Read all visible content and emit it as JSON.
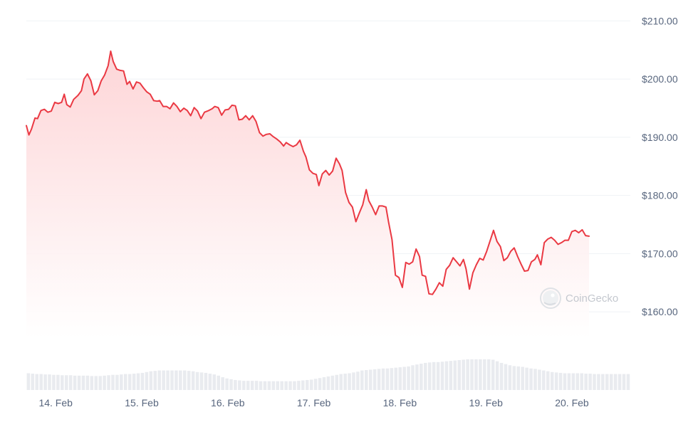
{
  "chart_data": {
    "type": "area",
    "watermark": "CoinGecko",
    "y_ticks": [
      "$210.00",
      "$200.00",
      "$190.00",
      "$180.00",
      "$170.00",
      "$160.00"
    ],
    "y_tick_values": [
      210,
      200,
      190,
      180,
      170,
      160
    ],
    "ylim": [
      155.5,
      212
    ],
    "x_ticks": [
      "14. Feb",
      "15. Feb",
      "16. Feb",
      "17. Feb",
      "18. Feb",
      "19. Feb",
      "20. Feb"
    ],
    "x_tick_values": [
      0,
      1,
      2,
      3,
      4,
      5,
      6
    ],
    "xlim": [
      -0.07,
      6.95
    ],
    "grid": true,
    "colors": {
      "line": "#ea3943",
      "fill_top": "#fdd3d5",
      "fill_bottom": "#ffffff",
      "volume": "#e9ebef",
      "grid": "#eff2f5",
      "axis_text": "#58667e"
    },
    "series": [
      {
        "values": [
          [
            -0.07,
            192.0
          ],
          [
            -0.04,
            190.4
          ],
          [
            -0.01,
            191.4
          ],
          [
            0.03,
            193.3
          ],
          [
            0.06,
            193.2
          ],
          [
            0.1,
            194.6
          ],
          [
            0.14,
            194.8
          ],
          [
            0.18,
            194.3
          ],
          [
            0.22,
            194.5
          ],
          [
            0.26,
            196.0
          ],
          [
            0.3,
            195.8
          ],
          [
            0.34,
            196.0
          ],
          [
            0.37,
            197.4
          ],
          [
            0.4,
            195.6
          ],
          [
            0.44,
            195.2
          ],
          [
            0.48,
            196.5
          ],
          [
            0.53,
            197.2
          ],
          [
            0.57,
            198.0
          ],
          [
            0.6,
            200.0
          ],
          [
            0.64,
            200.9
          ],
          [
            0.68,
            199.7
          ],
          [
            0.72,
            197.3
          ],
          [
            0.76,
            198.0
          ],
          [
            0.8,
            199.7
          ],
          [
            0.84,
            200.7
          ],
          [
            0.88,
            202.3
          ],
          [
            0.91,
            204.8
          ],
          [
            0.94,
            203.0
          ],
          [
            0.98,
            201.7
          ],
          [
            1.02,
            201.5
          ],
          [
            1.06,
            201.4
          ],
          [
            1.1,
            199.1
          ],
          [
            1.13,
            199.6
          ],
          [
            1.17,
            198.3
          ],
          [
            1.21,
            199.5
          ],
          [
            1.25,
            199.3
          ],
          [
            1.29,
            198.5
          ],
          [
            1.33,
            197.8
          ],
          [
            1.37,
            197.4
          ],
          [
            1.41,
            196.3
          ],
          [
            1.45,
            196.2
          ],
          [
            1.48,
            196.3
          ],
          [
            1.52,
            195.3
          ],
          [
            1.56,
            195.3
          ],
          [
            1.6,
            194.9
          ],
          [
            1.64,
            195.9
          ],
          [
            1.68,
            195.3
          ],
          [
            1.72,
            194.4
          ],
          [
            1.76,
            195.0
          ],
          [
            1.8,
            194.6
          ],
          [
            1.84,
            193.7
          ],
          [
            1.88,
            195.1
          ],
          [
            1.92,
            194.5
          ],
          [
            1.96,
            193.2
          ],
          [
            2.0,
            194.3
          ],
          [
            2.05,
            194.6
          ],
          [
            2.09,
            194.9
          ],
          [
            2.12,
            195.3
          ],
          [
            2.16,
            195.1
          ],
          [
            2.2,
            193.8
          ],
          [
            2.24,
            194.7
          ],
          [
            2.28,
            194.8
          ],
          [
            2.32,
            195.5
          ],
          [
            2.36,
            195.4
          ],
          [
            2.4,
            193.0
          ],
          [
            2.44,
            193.1
          ],
          [
            2.48,
            193.7
          ],
          [
            2.52,
            193.0
          ],
          [
            2.56,
            193.7
          ],
          [
            2.6,
            192.7
          ],
          [
            2.64,
            190.8
          ],
          [
            2.68,
            190.2
          ],
          [
            2.72,
            190.5
          ],
          [
            2.76,
            190.6
          ],
          [
            2.8,
            190.1
          ],
          [
            2.84,
            189.7
          ],
          [
            2.88,
            189.2
          ],
          [
            2.92,
            188.5
          ],
          [
            2.95,
            189.1
          ],
          [
            2.99,
            188.7
          ],
          [
            3.03,
            188.4
          ],
          [
            3.07,
            188.7
          ],
          [
            3.11,
            189.5
          ],
          [
            3.15,
            187.6
          ],
          [
            3.18,
            186.6
          ],
          [
            3.22,
            184.4
          ],
          [
            3.26,
            183.8
          ],
          [
            3.3,
            183.6
          ],
          [
            3.33,
            181.7
          ],
          [
            3.37,
            183.7
          ],
          [
            3.41,
            184.3
          ],
          [
            3.45,
            183.5
          ],
          [
            3.49,
            184.2
          ],
          [
            3.53,
            186.4
          ],
          [
            3.57,
            185.4
          ],
          [
            3.6,
            184.3
          ],
          [
            3.64,
            180.5
          ],
          [
            3.68,
            178.8
          ],
          [
            3.72,
            178.0
          ],
          [
            3.76,
            175.5
          ],
          [
            3.8,
            177.0
          ],
          [
            3.84,
            178.4
          ],
          [
            3.88,
            181.0
          ],
          [
            3.91,
            179.1
          ],
          [
            3.95,
            178.0
          ],
          [
            3.99,
            176.7
          ],
          [
            4.03,
            178.2
          ],
          [
            4.07,
            178.2
          ],
          [
            4.11,
            178.0
          ],
          [
            4.14,
            175.4
          ],
          [
            4.18,
            172.4
          ],
          [
            4.22,
            166.3
          ],
          [
            4.26,
            165.9
          ],
          [
            4.3,
            164.2
          ],
          [
            4.34,
            168.5
          ],
          [
            4.38,
            168.2
          ],
          [
            4.42,
            168.6
          ],
          [
            4.46,
            170.8
          ],
          [
            4.5,
            169.5
          ],
          [
            4.53,
            166.3
          ],
          [
            4.57,
            166.1
          ],
          [
            4.61,
            163.1
          ],
          [
            4.65,
            163.0
          ],
          [
            4.69,
            163.9
          ],
          [
            4.73,
            165.0
          ],
          [
            4.77,
            164.4
          ],
          [
            4.81,
            167.3
          ],
          [
            4.85,
            168.0
          ],
          [
            4.89,
            169.3
          ],
          [
            4.93,
            168.6
          ],
          [
            4.97,
            167.9
          ],
          [
            5.01,
            169.0
          ],
          [
            5.04,
            167.4
          ],
          [
            5.08,
            163.9
          ],
          [
            5.12,
            166.7
          ],
          [
            5.16,
            168.1
          ],
          [
            5.2,
            169.2
          ],
          [
            5.24,
            168.9
          ],
          [
            5.28,
            170.4
          ],
          [
            5.32,
            172.2
          ],
          [
            5.36,
            174.0
          ],
          [
            5.4,
            172.1
          ],
          [
            5.44,
            171.2
          ],
          [
            5.48,
            168.8
          ],
          [
            5.52,
            169.3
          ],
          [
            5.56,
            170.4
          ],
          [
            5.6,
            171.0
          ],
          [
            5.64,
            169.5
          ],
          [
            5.68,
            168.2
          ],
          [
            5.72,
            167.0
          ],
          [
            5.76,
            167.1
          ],
          [
            5.8,
            168.6
          ],
          [
            5.84,
            169.0
          ],
          [
            5.87,
            169.8
          ],
          [
            5.91,
            168.1
          ],
          [
            5.95,
            171.9
          ],
          [
            5.99,
            172.5
          ],
          [
            6.03,
            172.8
          ],
          [
            6.07,
            172.3
          ],
          [
            6.11,
            171.6
          ],
          [
            6.15,
            171.9
          ],
          [
            6.19,
            172.3
          ],
          [
            6.23,
            172.3
          ],
          [
            6.27,
            173.8
          ],
          [
            6.31,
            174.0
          ],
          [
            6.35,
            173.6
          ],
          [
            6.39,
            174.1
          ],
          [
            6.43,
            173.1
          ],
          [
            6.47,
            173.0
          ]
        ]
      }
    ],
    "volume": [
      0.42,
      0.41,
      0.4,
      0.4,
      0.39,
      0.39,
      0.38,
      0.38,
      0.37,
      0.37,
      0.37,
      0.36,
      0.36,
      0.36,
      0.36,
      0.35,
      0.35,
      0.35,
      0.36,
      0.37,
      0.38,
      0.38,
      0.39,
      0.4,
      0.4,
      0.41,
      0.42,
      0.43,
      0.45,
      0.47,
      0.48,
      0.49,
      0.49,
      0.49,
      0.49,
      0.49,
      0.49,
      0.49,
      0.48,
      0.47,
      0.45,
      0.44,
      0.43,
      0.41,
      0.39,
      0.36,
      0.32,
      0.29,
      0.27,
      0.25,
      0.24,
      0.23,
      0.23,
      0.23,
      0.23,
      0.22,
      0.22,
      0.22,
      0.22,
      0.22,
      0.22,
      0.22,
      0.22,
      0.22,
      0.23,
      0.24,
      0.25,
      0.26,
      0.28,
      0.3,
      0.32,
      0.34,
      0.36,
      0.38,
      0.4,
      0.41,
      0.42,
      0.44,
      0.46,
      0.49,
      0.5,
      0.51,
      0.52,
      0.53,
      0.54,
      0.54,
      0.55,
      0.56,
      0.57,
      0.58,
      0.59,
      0.62,
      0.64,
      0.66,
      0.68,
      0.69,
      0.7,
      0.7,
      0.71,
      0.72,
      0.73,
      0.74,
      0.75,
      0.76,
      0.77,
      0.77,
      0.77,
      0.77,
      0.77,
      0.77,
      0.76,
      0.72,
      0.68,
      0.65,
      0.62,
      0.6,
      0.59,
      0.58,
      0.56,
      0.54,
      0.53,
      0.51,
      0.49,
      0.47,
      0.45,
      0.44,
      0.43,
      0.42,
      0.42,
      0.42,
      0.42,
      0.42,
      0.41,
      0.41,
      0.4,
      0.4,
      0.4,
      0.4,
      0.4,
      0.4,
      0.4,
      0.4,
      0.4
    ]
  }
}
